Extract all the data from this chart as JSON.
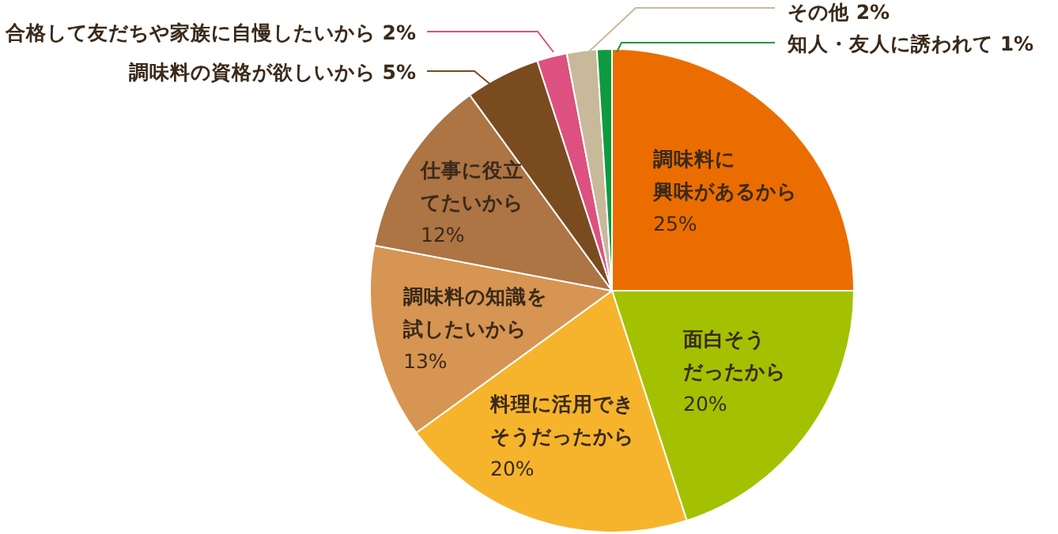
{
  "chart_data": {
    "type": "pie",
    "categories": [
      "調味料に興味があるから",
      "面白そうだったから",
      "料理に活用できそうだったから",
      "調味料の知識を試したいから",
      "仕事に役立てたいから",
      "調味料の資格が欲しいから",
      "合格して友だちや家族に自慢したいから",
      "その他",
      "知人・友人に誘われて"
    ],
    "values": [
      25,
      20,
      20,
      13,
      12,
      5,
      2,
      2,
      1
    ],
    "colors": [
      "#eb6d00",
      "#a3c100",
      "#f6b42c",
      "#d69552",
      "#ad7444",
      "#7b4b20",
      "#dc5180",
      "#c8b99a",
      "#0f9a40"
    ],
    "value_labels": [
      "25%",
      "20%",
      "20%",
      "13%",
      "12%",
      "5%",
      "2%",
      "2%",
      "1%"
    ]
  }
}
